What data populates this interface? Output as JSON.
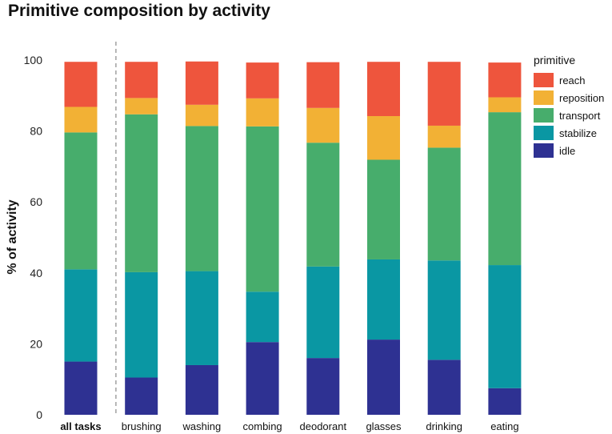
{
  "chart_data": {
    "type": "bar",
    "stacked": true,
    "title": "Primitive composition by activity",
    "xlabel": "",
    "ylabel": "% of activity",
    "ylim": [
      0,
      100
    ],
    "yticks": [
      0,
      20,
      40,
      60,
      80,
      100
    ],
    "categories": [
      "all tasks",
      "brushing",
      "washing",
      "combing",
      "deodorant",
      "glasses",
      "drinking",
      "eating"
    ],
    "bold_categories": [
      "all tasks"
    ],
    "separator_after": "all tasks",
    "legend": {
      "title": "primitive",
      "position": "right",
      "order": [
        "reach",
        "reposition",
        "transport",
        "stabilize",
        "idle"
      ]
    },
    "series": [
      {
        "name": "idle",
        "color": "#2E3192",
        "values": [
          15,
          10.5,
          14,
          20.5,
          16,
          21.2,
          15.5,
          7.5
        ]
      },
      {
        "name": "stabilize",
        "color": "#0A97A3",
        "values": [
          26,
          29.7,
          26.5,
          14.2,
          25.8,
          22.6,
          28,
          34.7
        ]
      },
      {
        "name": "transport",
        "color": "#47AD6C",
        "values": [
          38.6,
          44.5,
          40.9,
          46.6,
          34.9,
          28.1,
          31.8,
          43.1
        ]
      },
      {
        "name": "reposition",
        "color": "#F2B135",
        "values": [
          7.2,
          4.6,
          6,
          7.9,
          9.8,
          12.3,
          6.2,
          4.2
        ]
      },
      {
        "name": "reach",
        "color": "#EE553D",
        "values": [
          12.7,
          10.2,
          12.2,
          10.1,
          12.9,
          15.3,
          18,
          9.8
        ]
      }
    ]
  }
}
